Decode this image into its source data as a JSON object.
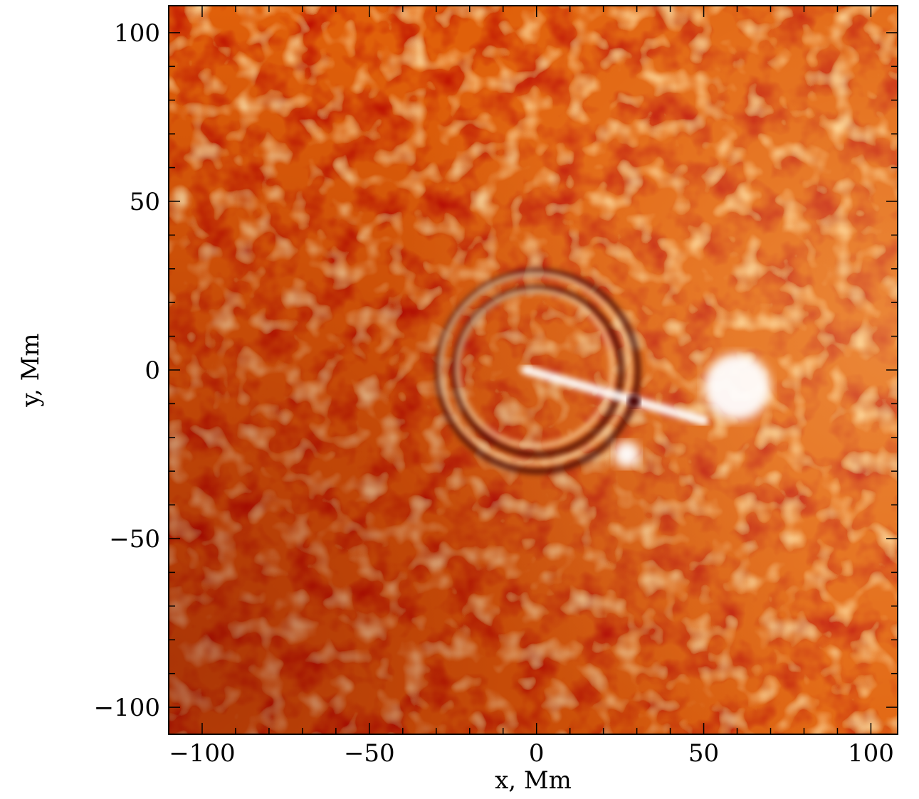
{
  "chart_data": {
    "type": "heatmap",
    "title": "",
    "xlabel": "x, Mm",
    "ylabel": "y, Mm",
    "xlim": [
      -110,
      108
    ],
    "ylim": [
      -108,
      108
    ],
    "x_ticks": [
      -100,
      -50,
      0,
      50,
      100
    ],
    "y_ticks": [
      100,
      50,
      0,
      -50,
      -100
    ],
    "x_tick_labels": [
      "−100",
      "−50",
      "0",
      "50",
      "100"
    ],
    "y_tick_labels": [
      "100",
      "50",
      "0",
      "−50",
      "−100"
    ],
    "colormap": {
      "low": "#7a0000",
      "mid": "#ff8a10",
      "high": "#ffffff",
      "background": "#e0600a"
    },
    "grid": false,
    "features": [
      {
        "kind": "ring",
        "center_x": 0,
        "center_y": 0,
        "radius": 29,
        "tone": "dark/bright double ring"
      },
      {
        "kind": "ring",
        "center_x": 0,
        "center_y": 0,
        "radius": 24,
        "tone": "inner ring"
      },
      {
        "kind": "bright-streak",
        "from_x": -3,
        "from_y": 0,
        "to_x": 50,
        "to_y": -15
      },
      {
        "kind": "bright-patch",
        "center_x": 60,
        "center_y": -5,
        "radius": 10
      },
      {
        "kind": "bright-patch",
        "center_x": 27,
        "center_y": -25,
        "radius": 4
      }
    ]
  }
}
